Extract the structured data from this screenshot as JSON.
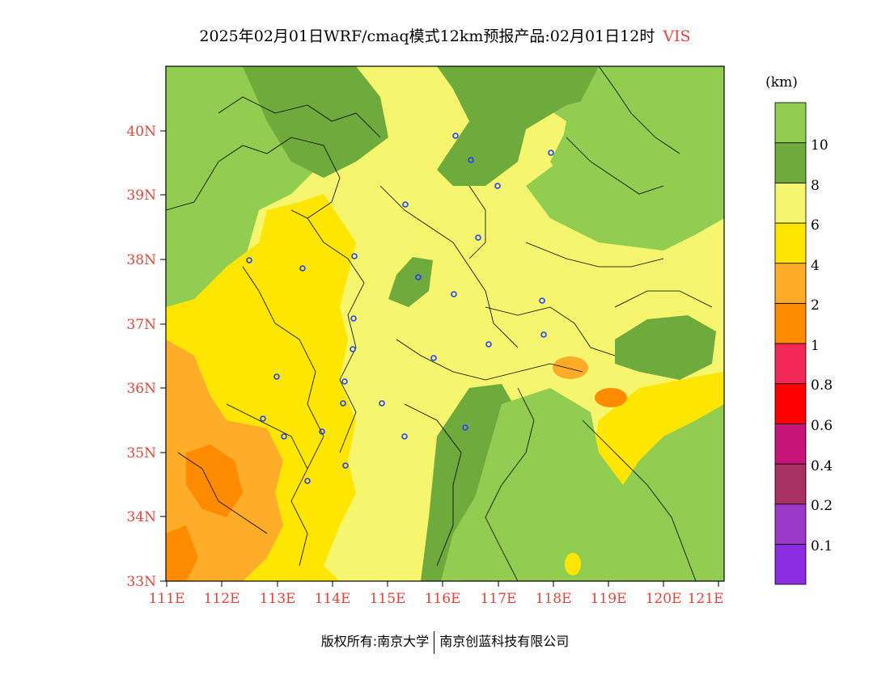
{
  "title": {
    "text": "2025年02月01日WRF/cmaq模式12km预报产品:02月01日12时",
    "variable": "VIS"
  },
  "axes": {
    "lat_labels": [
      "33N",
      "34N",
      "35N",
      "36N",
      "37N",
      "38N",
      "39N",
      "40N"
    ],
    "lon_labels": [
      "111E",
      "112E",
      "113E",
      "114E",
      "115E",
      "116E",
      "117E",
      "118E",
      "119E",
      "120E",
      "121E"
    ]
  },
  "colorbar": {
    "unit": "(km)",
    "levels": [
      {
        "color": "#8b2be2"
      },
      {
        "color": "#9b38c8"
      },
      {
        "color": "#a83062"
      },
      {
        "color": "#c8157a"
      },
      {
        "color": "#ff0000"
      },
      {
        "color": "#f22856"
      },
      {
        "color": "#ff8c00"
      },
      {
        "color": "#ffac28"
      },
      {
        "color": "#ffe600"
      },
      {
        "color": "#f5f56e"
      },
      {
        "color": "#6eaa3c"
      },
      {
        "color": "#91cd50"
      }
    ],
    "labels": [
      "0.1",
      "0.2",
      "0.4",
      "0.6",
      "0.8",
      "1",
      "2",
      "4",
      "6",
      "8",
      "10"
    ]
  },
  "footer": {
    "left": "版权所有:南京大学",
    "right": "南京创蓝科技有限公司"
  },
  "colors": {
    "accent_red": "#e8443a",
    "light_green": "#91cd50",
    "dark_green": "#6eaa3c",
    "light_yellow": "#f5f56e",
    "yellow": "#ffe600",
    "orange_light": "#ffac28",
    "orange": "#ff8c00",
    "city_marker": "#2040ff"
  }
}
